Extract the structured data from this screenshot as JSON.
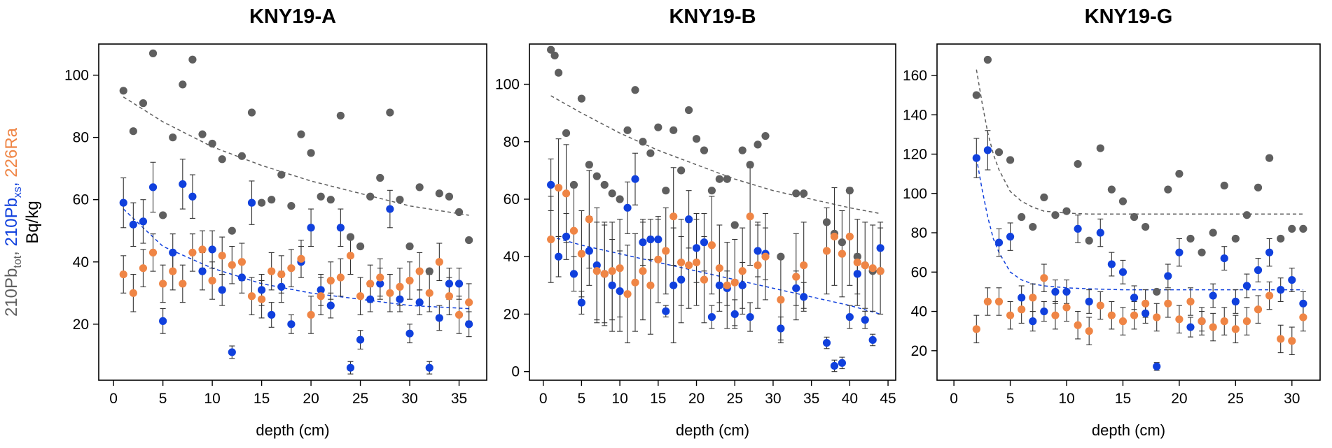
{
  "colors": {
    "tot": "#5f5f5f",
    "xs": "#1040dd",
    "ra": "#ef8545",
    "err": "#333333",
    "frame": "#000000"
  },
  "ylabel": {
    "part1": "210Pb",
    "part1_sub": "tot",
    "sep1": ", ",
    "part2": "210Pb",
    "part2_sub": "xs",
    "sep2": ", ",
    "part3": "226Ra",
    "line2": "Bq/kg"
  },
  "chart_data": [
    {
      "type": "scatter",
      "title": "KNY19-A",
      "xlabel": "depth (cm)",
      "xlim": [
        -1.5,
        37.8
      ],
      "ylim": [
        2,
        110
      ],
      "xticks": [
        0,
        5,
        10,
        15,
        20,
        25,
        30,
        35
      ],
      "yticks": [
        20,
        40,
        60,
        80,
        100
      ],
      "series": [
        {
          "name": "210Pb tot",
          "color_key": "tot",
          "x": [
            1,
            2,
            3,
            4,
            5,
            6,
            7,
            8,
            9,
            10,
            11,
            12,
            13,
            14,
            15,
            16,
            17,
            18,
            19,
            20,
            21,
            22,
            23,
            24,
            25,
            26,
            27,
            28,
            29,
            30,
            31,
            32,
            33,
            34,
            35,
            36
          ],
          "y": [
            95,
            82,
            91,
            107,
            55,
            80,
            97,
            105,
            81,
            78,
            73,
            50,
            74,
            88,
            59,
            60,
            68,
            58,
            81,
            75,
            61,
            60,
            87,
            48,
            45,
            61,
            67,
            88,
            60,
            45,
            64,
            37,
            62,
            61,
            56,
            47
          ]
        },
        {
          "name": "210Pb xs",
          "color_key": "xs",
          "x": [
            1,
            2,
            3,
            4,
            5,
            6,
            7,
            8,
            9,
            10,
            11,
            12,
            13,
            14,
            15,
            16,
            17,
            18,
            19,
            20,
            21,
            22,
            23,
            24,
            25,
            26,
            27,
            28,
            29,
            30,
            31,
            32,
            33,
            34,
            35,
            36
          ],
          "y": [
            59,
            52,
            53,
            64,
            21,
            43,
            65,
            61,
            37,
            44,
            31,
            11,
            35,
            59,
            31,
            23,
            32,
            20,
            40,
            51,
            31,
            26,
            51,
            6,
            15,
            28,
            33,
            57,
            28,
            17,
            27,
            6,
            22,
            33,
            33,
            20
          ],
          "err": [
            8,
            7,
            7,
            8,
            4,
            6,
            8,
            7,
            6,
            6,
            5,
            2,
            5,
            7,
            5,
            4,
            5,
            3,
            5,
            6,
            5,
            4,
            6,
            2,
            3,
            4,
            5,
            6,
            4,
            3,
            4,
            2,
            4,
            5,
            5,
            4
          ]
        },
        {
          "name": "226Ra",
          "color_key": "ra",
          "x": [
            1,
            2,
            3,
            4,
            5,
            6,
            7,
            8,
            9,
            10,
            11,
            12,
            13,
            14,
            15,
            16,
            17,
            18,
            19,
            20,
            21,
            22,
            23,
            24,
            25,
            26,
            27,
            28,
            29,
            30,
            31,
            32,
            33,
            34,
            35,
            36
          ],
          "y": [
            36,
            30,
            38,
            43,
            33,
            37,
            33,
            43,
            44,
            34,
            42,
            39,
            40,
            29,
            28,
            37,
            36,
            38,
            41,
            23,
            29,
            34,
            35,
            42,
            29,
            33,
            35,
            30,
            32,
            34,
            37,
            30,
            40,
            29,
            23,
            27
          ],
          "err": [
            6,
            6,
            6,
            6,
            6,
            6,
            6,
            6,
            6,
            6,
            6,
            6,
            6,
            6,
            6,
            6,
            6,
            6,
            6,
            6,
            6,
            6,
            6,
            6,
            6,
            6,
            6,
            6,
            6,
            6,
            6,
            6,
            6,
            6,
            6,
            6
          ]
        }
      ],
      "fits": [
        {
          "color_key": "tot",
          "x": [
            1,
            5,
            10,
            15,
            20,
            25,
            30,
            36
          ],
          "y": [
            93,
            85,
            77,
            71,
            66,
            62,
            58,
            55
          ]
        },
        {
          "color_key": "xs",
          "x": [
            1,
            5,
            10,
            15,
            20,
            25,
            30,
            36
          ],
          "y": [
            57,
            45,
            38,
            33,
            30,
            28,
            26,
            25
          ]
        }
      ]
    },
    {
      "type": "scatter",
      "title": "KNY19-B",
      "xlabel": "depth (cm)",
      "xlim": [
        -1.8,
        46
      ],
      "ylim": [
        -3,
        114
      ],
      "xticks": [
        0,
        5,
        10,
        15,
        20,
        25,
        30,
        35,
        40,
        45
      ],
      "yticks": [
        0,
        20,
        40,
        60,
        80,
        100
      ],
      "series": [
        {
          "name": "210Pb tot",
          "color_key": "tot",
          "x": [
            1,
            1.5,
            2,
            3,
            4,
            5,
            6,
            7,
            8,
            9,
            10,
            11,
            12,
            13,
            14,
            15,
            16,
            17,
            18,
            19,
            20,
            21,
            22,
            23,
            24,
            25,
            26,
            27,
            28,
            29,
            31,
            33,
            34,
            37,
            38,
            39,
            40,
            41,
            42,
            43,
            44
          ],
          "y": [
            112,
            110,
            104,
            83,
            65,
            95,
            72,
            68,
            65,
            62,
            60,
            84,
            98,
            80,
            76,
            85,
            63,
            84,
            70,
            91,
            81,
            77,
            63,
            67,
            67,
            51,
            77,
            72,
            79,
            82,
            40,
            62,
            62,
            52,
            48,
            45,
            63,
            40,
            37,
            35,
            35
          ],
          "err": [
            0,
            0,
            0,
            0,
            0,
            0,
            0,
            0,
            0,
            0,
            0,
            0,
            0,
            0,
            0,
            0,
            0,
            0,
            0,
            0,
            0,
            0,
            0,
            0,
            0,
            0,
            0,
            0,
            0,
            0,
            0,
            0,
            0,
            0,
            0,
            0,
            0,
            0,
            0,
            0,
            0
          ]
        },
        {
          "name": "210Pb xs",
          "color_key": "xs",
          "x": [
            1,
            2,
            3,
            4,
            5,
            6,
            7,
            8,
            9,
            10,
            11,
            12,
            13,
            14,
            15,
            16,
            17,
            18,
            19,
            20,
            21,
            22,
            23,
            24,
            25,
            26,
            27,
            28,
            29,
            31,
            33,
            34,
            37,
            38,
            39,
            40,
            41,
            42,
            43,
            44
          ],
          "y": [
            65,
            40,
            47,
            34,
            24,
            42,
            37,
            34,
            30,
            28,
            57,
            67,
            45,
            46,
            46,
            21,
            30,
            32,
            53,
            43,
            45,
            19,
            30,
            29,
            20,
            30,
            19,
            42,
            41,
            15,
            29,
            26,
            10,
            2,
            3,
            19,
            34,
            18,
            11,
            43
          ],
          "err": [
            9,
            7,
            8,
            6,
            4,
            12,
            20,
            18,
            16,
            14,
            9,
            9,
            8,
            7,
            7,
            2,
            20,
            15,
            10,
            12,
            10,
            4,
            6,
            6,
            5,
            8,
            5,
            9,
            9,
            4,
            6,
            5,
            2,
            2,
            2,
            4,
            7,
            3,
            2,
            9
          ]
        },
        {
          "name": "226Ra",
          "color_key": "ra",
          "x": [
            1,
            2,
            3,
            4,
            5,
            6,
            7,
            8,
            9,
            10,
            11,
            12,
            13,
            14,
            15,
            16,
            17,
            18,
            19,
            20,
            21,
            22,
            23,
            24,
            25,
            26,
            27,
            28,
            29,
            31,
            33,
            34,
            37,
            38,
            39,
            40,
            41,
            42,
            43,
            44
          ],
          "y": [
            46,
            64,
            62,
            49,
            41,
            53,
            35,
            34,
            35,
            36,
            27,
            31,
            35,
            30,
            39,
            42,
            54,
            38,
            37,
            38,
            32,
            44,
            36,
            30,
            31,
            35,
            54,
            37,
            40,
            25,
            33,
            37,
            42,
            47,
            41,
            47,
            38,
            37,
            36,
            35
          ],
          "err": [
            15,
            17,
            17,
            15,
            15,
            17,
            17,
            17,
            17,
            17,
            17,
            17,
            17,
            17,
            15,
            15,
            17,
            15,
            15,
            15,
            15,
            17,
            15,
            15,
            15,
            15,
            17,
            15,
            15,
            15,
            15,
            15,
            15,
            17,
            15,
            17,
            15,
            15,
            15,
            15
          ]
        }
      ],
      "fits": [
        {
          "color_key": "tot",
          "x": [
            1,
            5,
            10,
            15,
            20,
            25,
            30,
            35,
            40,
            44
          ],
          "y": [
            96,
            90,
            83,
            77,
            72,
            67,
            63,
            60,
            57,
            55
          ]
        },
        {
          "color_key": "xs",
          "x": [
            1,
            5,
            10,
            15,
            20,
            25,
            30,
            35,
            40,
            44
          ],
          "y": [
            47,
            44,
            41,
            38,
            35,
            32,
            29,
            26,
            23,
            20
          ]
        }
      ]
    },
    {
      "type": "scatter",
      "title": "KNY19-G",
      "xlabel": "depth (cm)",
      "xlim": [
        -1.5,
        32.5
      ],
      "ylim": [
        5,
        176
      ],
      "xticks": [
        0,
        5,
        10,
        15,
        20,
        25,
        30
      ],
      "yticks": [
        20,
        40,
        60,
        80,
        100,
        120,
        140,
        160
      ],
      "series": [
        {
          "name": "210Pb tot",
          "color_key": "tot",
          "x": [
            2,
            3,
            4,
            5,
            6,
            7,
            8,
            9,
            10,
            11,
            12,
            13,
            14,
            15,
            16,
            17,
            18,
            19,
            20,
            21,
            22,
            23,
            24,
            25,
            26,
            27,
            28,
            29,
            30,
            31
          ],
          "y": [
            150,
            168,
            121,
            117,
            88,
            83,
            98,
            89,
            91,
            115,
            76,
            123,
            102,
            96,
            88,
            83,
            50,
            102,
            110,
            77,
            70,
            80,
            104,
            77,
            89,
            103,
            118,
            77,
            82,
            82
          ]
        },
        {
          "name": "210Pb xs",
          "color_key": "xs",
          "x": [
            2,
            3,
            4,
            5,
            6,
            7,
            8,
            9,
            10,
            11,
            12,
            13,
            14,
            15,
            16,
            17,
            18,
            19,
            20,
            21,
            22,
            23,
            24,
            25,
            26,
            27,
            28,
            29,
            30,
            31
          ],
          "y": [
            118,
            122,
            75,
            78,
            47,
            35,
            40,
            50,
            50,
            82,
            45,
            80,
            64,
            60,
            47,
            39,
            12,
            58,
            70,
            32,
            35,
            48,
            67,
            45,
            53,
            61,
            70,
            51,
            56,
            44
          ],
          "err": [
            10,
            10,
            7,
            7,
            6,
            5,
            5,
            6,
            6,
            7,
            6,
            7,
            6,
            6,
            6,
            5,
            2,
            6,
            7,
            5,
            5,
            6,
            6,
            6,
            6,
            6,
            7,
            6,
            6,
            6
          ]
        },
        {
          "name": "226Ra",
          "color_key": "ra",
          "x": [
            2,
            3,
            4,
            5,
            6,
            7,
            8,
            9,
            10,
            11,
            12,
            13,
            14,
            15,
            16,
            17,
            18,
            19,
            20,
            21,
            22,
            23,
            24,
            25,
            26,
            27,
            28,
            29,
            30,
            31
          ],
          "y": [
            31,
            45,
            45,
            38,
            41,
            47,
            57,
            38,
            42,
            33,
            30,
            43,
            38,
            35,
            38,
            44,
            37,
            44,
            36,
            45,
            35,
            32,
            35,
            31,
            35,
            41,
            48,
            26,
            25,
            37
          ],
          "err": [
            7,
            7,
            7,
            7,
            7,
            7,
            7,
            7,
            7,
            7,
            7,
            7,
            7,
            7,
            7,
            7,
            7,
            7,
            7,
            7,
            7,
            7,
            7,
            7,
            7,
            7,
            7,
            7,
            7,
            7
          ]
        }
      ],
      "fits": [
        {
          "color_key": "tot",
          "x": [
            2,
            2.5,
            3,
            3.5,
            4,
            5,
            6,
            7,
            8,
            10,
            12,
            15,
            20,
            25,
            31
          ],
          "y": [
            163,
            146,
            131,
            120,
            112,
            101,
            96,
            93,
            91,
            90,
            89.5,
            89.5,
            89.5,
            89.5,
            89.5
          ]
        },
        {
          "color_key": "xs",
          "x": [
            2,
            2.5,
            3,
            3.5,
            4,
            5,
            6,
            7,
            8,
            10,
            12,
            15,
            20,
            25,
            31
          ],
          "y": [
            118,
            102,
            88,
            77,
            70,
            60,
            56,
            54,
            53,
            52,
            51.5,
            51,
            51,
            51,
            51
          ]
        }
      ]
    }
  ]
}
